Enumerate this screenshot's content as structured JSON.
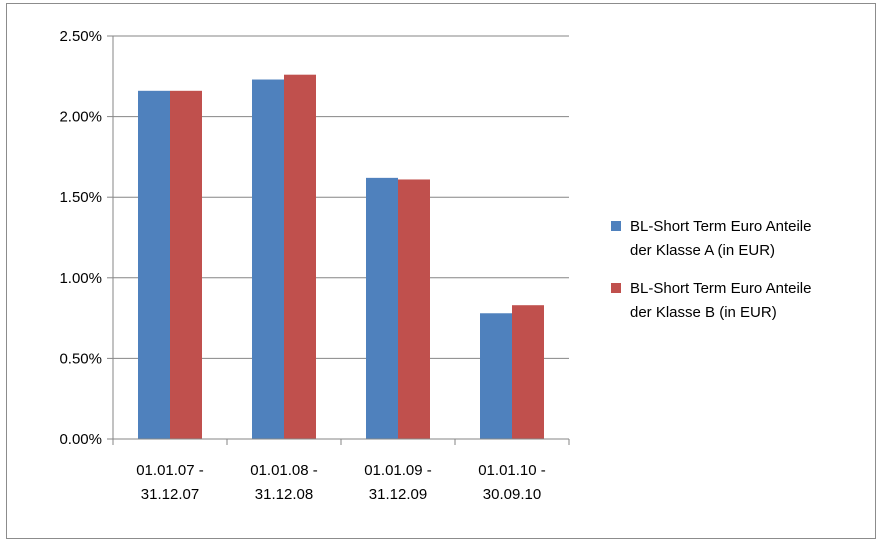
{
  "chart_data": {
    "type": "bar",
    "categories": [
      [
        "01.01.07 -",
        "31.12.07"
      ],
      [
        "01.01.08 -",
        "31.12.08"
      ],
      [
        "01.01.09 -",
        "31.12.09"
      ],
      [
        "01.01.10 -",
        "30.09.10"
      ]
    ],
    "series": [
      {
        "name": [
          "BL-Short Term Euro Anteile",
          "der Klasse A (in EUR)"
        ],
        "color": "#4f81bd",
        "values": [
          2.16,
          2.23,
          1.62,
          0.78
        ]
      },
      {
        "name": [
          "BL-Short Term Euro Anteile",
          "der Klasse B (in EUR)"
        ],
        "color": "#c0504d",
        "values": [
          2.16,
          2.26,
          1.61,
          0.83
        ]
      }
    ],
    "y_ticks": [
      "0.00%",
      "0.50%",
      "1.00%",
      "1.50%",
      "2.00%",
      "2.50%"
    ],
    "y_tick_values": [
      0,
      0.5,
      1.0,
      1.5,
      2.0,
      2.5
    ],
    "ylim": [
      0,
      2.5
    ],
    "grid": true,
    "legend_position": "right"
  }
}
